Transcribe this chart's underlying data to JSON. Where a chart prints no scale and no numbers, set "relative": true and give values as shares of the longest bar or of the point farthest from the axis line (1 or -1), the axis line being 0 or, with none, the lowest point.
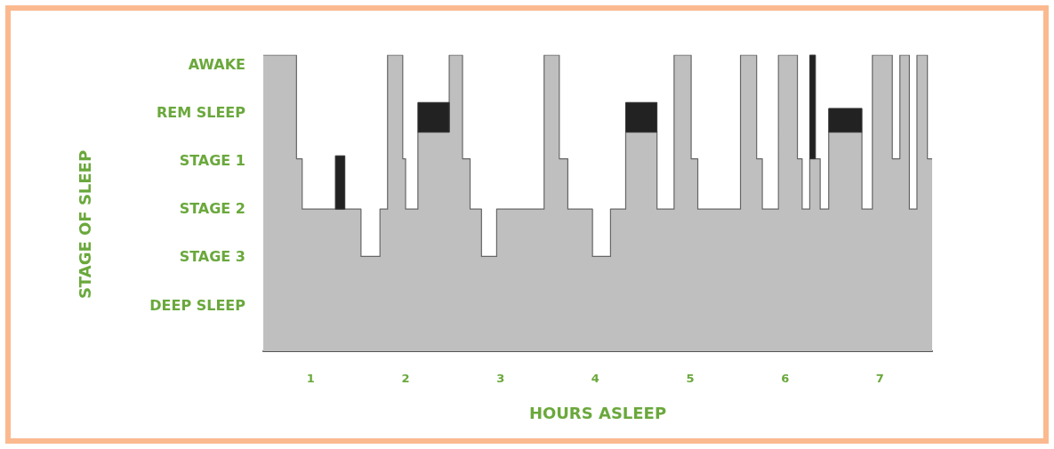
{
  "chart_data": {
    "type": "area",
    "xlabel": "HOURS ASLEEP",
    "annotations": [
      "STAGE OF SLEEP"
    ],
    "relative": true,
    "xlim": [
      0.5,
      7.55
    ],
    "xticks": [
      1,
      2,
      3,
      4,
      5,
      6,
      7
    ],
    "y_categories": [
      "AWAKE",
      "REM SLEEP",
      "STAGE 1",
      "STAGE 2",
      "STAGE 3",
      "DEEP SLEEP"
    ],
    "grid": false,
    "series": [
      {
        "color": "#bfbfbf",
        "x": [
          0.5,
          0.85,
          0.85,
          0.91,
          0.91,
          1.53,
          1.53,
          1.73,
          1.73,
          1.81,
          1.81,
          1.97,
          1.97,
          2.0,
          2.0,
          2.13,
          2.13,
          2.46,
          2.46,
          2.6,
          2.6,
          2.68,
          2.68,
          2.8,
          2.8,
          2.96,
          2.96,
          3.46,
          3.46,
          3.62,
          3.62,
          3.71,
          3.71,
          3.97,
          3.97,
          4.16,
          4.16,
          4.32,
          4.32,
          4.65,
          4.65,
          4.83,
          4.83,
          5.01,
          5.01,
          5.08,
          5.08,
          5.53,
          5.53,
          5.7,
          5.7,
          5.76,
          5.76,
          5.93,
          5.93,
          6.13,
          6.13,
          6.18,
          6.18,
          6.26,
          6.26,
          6.37,
          6.37,
          6.46,
          6.46,
          6.81,
          6.81,
          6.92,
          6.92,
          7.13,
          7.13,
          7.21,
          7.21,
          7.31,
          7.31,
          7.39,
          7.39,
          7.5,
          7.5,
          7.55
        ],
        "values": [
          1,
          1,
          0.65,
          0.65,
          0.48,
          0.48,
          0.32,
          0.32,
          0.48,
          0.48,
          1,
          1,
          0.65,
          0.65,
          0.48,
          0.48,
          0.74,
          0.74,
          1,
          1,
          0.65,
          0.65,
          0.48,
          0.48,
          0.32,
          0.32,
          0.48,
          0.48,
          1,
          1,
          0.65,
          0.65,
          0.48,
          0.48,
          0.32,
          0.32,
          0.48,
          0.48,
          0.74,
          0.74,
          0.48,
          0.48,
          1,
          1,
          0.65,
          0.65,
          0.48,
          0.48,
          1,
          1,
          0.65,
          0.65,
          0.48,
          0.48,
          1,
          1,
          0.65,
          0.65,
          0.48,
          0.48,
          0.65,
          0.65,
          0.48,
          0.48,
          0.74,
          0.74,
          0.48,
          0.48,
          1,
          1,
          0.65,
          0.65,
          1,
          1,
          0.48,
          0.48,
          1,
          1,
          0.65,
          0.65
        ]
      },
      {
        "color": "#222222",
        "x": [
          1.26,
          1.36
        ],
        "values": [
          0.66,
          0.66
        ]
      },
      {
        "color": "#222222",
        "x": [
          2.13,
          2.46
        ],
        "values": [
          0.84,
          0.84
        ]
      },
      {
        "color": "#222222",
        "x": [
          4.32,
          4.65
        ],
        "values": [
          0.84,
          0.84
        ]
      },
      {
        "color": "#222222",
        "x": [
          6.26,
          6.32
        ],
        "values": [
          1,
          1
        ]
      },
      {
        "color": "#222222",
        "x": [
          6.46,
          6.81
        ],
        "values": [
          0.82,
          0.82
        ]
      }
    ]
  }
}
